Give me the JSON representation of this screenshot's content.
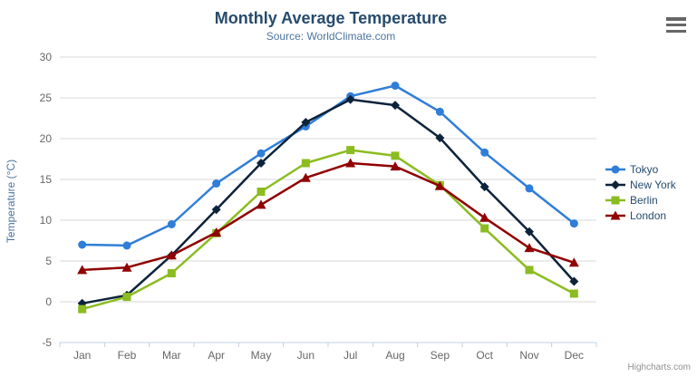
{
  "chart": {
    "title": "Monthly Average Temperature",
    "subtitle": "Source: WorldClimate.com",
    "credits": "Highcharts.com",
    "export_icon": "hamburger-menu-icon"
  },
  "colors": {
    "title_text": "#274b6d",
    "subtitle_text": "#4d759e",
    "axis_label_text": "#666666",
    "axis_title_text": "#4d759e",
    "gridline": "#d8d8d8",
    "x_axis_line": "#c0d0e0",
    "legend_text": "#274b6d",
    "credits_text": "#909090"
  },
  "chart_data": {
    "type": "line",
    "title": "Monthly Average Temperature",
    "subtitle": "Source: WorldClimate.com",
    "categories": [
      "Jan",
      "Feb",
      "Mar",
      "Apr",
      "May",
      "Jun",
      "Jul",
      "Aug",
      "Sep",
      "Oct",
      "Nov",
      "Dec"
    ],
    "xlabel": "",
    "ylabel": "Temperature (°C)",
    "ylim": [
      -5,
      30
    ],
    "ytick_step": 5,
    "yticks": [
      -5,
      0,
      5,
      10,
      15,
      20,
      25,
      30
    ],
    "grid": true,
    "legend_position": "right",
    "series": [
      {
        "name": "Tokyo",
        "color": "#2f7ed8",
        "marker": "circle",
        "values": [
          7.0,
          6.9,
          9.5,
          14.5,
          18.2,
          21.5,
          25.2,
          26.5,
          23.3,
          18.3,
          13.9,
          9.6
        ]
      },
      {
        "name": "New York",
        "color": "#0d233a",
        "marker": "diamond",
        "values": [
          -0.2,
          0.8,
          5.7,
          11.3,
          17.0,
          22.0,
          24.8,
          24.1,
          20.1,
          14.1,
          8.6,
          2.5
        ]
      },
      {
        "name": "Berlin",
        "color": "#8bbc21",
        "marker": "square",
        "values": [
          -0.9,
          0.6,
          3.5,
          8.4,
          13.5,
          17.0,
          18.6,
          17.9,
          14.3,
          9.0,
          3.9,
          1.0
        ]
      },
      {
        "name": "London",
        "color": "#910000",
        "marker": "triangle",
        "values": [
          3.9,
          4.2,
          5.7,
          8.5,
          11.9,
          15.2,
          17.0,
          16.6,
          14.2,
          10.3,
          6.6,
          4.8
        ]
      }
    ]
  }
}
